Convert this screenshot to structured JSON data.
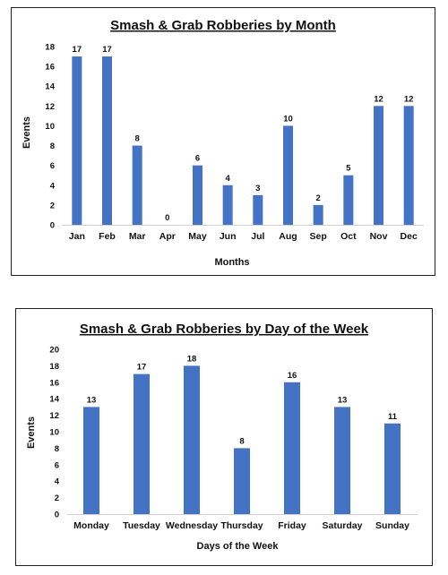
{
  "chart_data": [
    {
      "type": "bar",
      "title": "Smash & Grab Robberies by Month",
      "xlabel": "Months",
      "ylabel": "Events",
      "ylim": [
        0,
        18
      ],
      "ytick_step": 2,
      "grid": false,
      "categories": [
        "Jan",
        "Feb",
        "Mar",
        "Apr",
        "May",
        "Jun",
        "Jul",
        "Aug",
        "Sep",
        "Oct",
        "Nov",
        "Dec"
      ],
      "values": [
        17,
        17,
        8,
        0,
        6,
        4,
        3,
        10,
        2,
        5,
        12,
        12
      ],
      "bar_color": "#4472c4"
    },
    {
      "type": "bar",
      "title": "Smash & Grab Robberies by Day of the Week",
      "xlabel": "Days of the Week",
      "ylabel": "Events",
      "ylim": [
        0,
        20
      ],
      "ytick_step": 2,
      "grid": false,
      "categories": [
        "Monday",
        "Tuesday",
        "Wednesday",
        "Thursday",
        "Friday",
        "Saturday",
        "Sunday"
      ],
      "values": [
        13,
        17,
        18,
        8,
        16,
        13,
        11
      ],
      "bar_color": "#4472c4"
    }
  ]
}
